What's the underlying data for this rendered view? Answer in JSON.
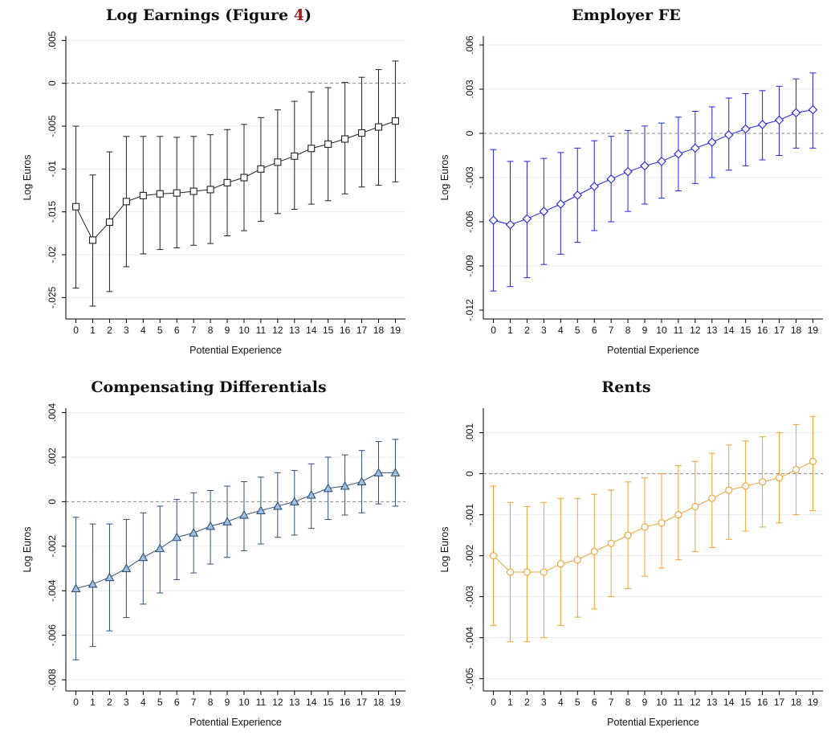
{
  "chart_data": [
    {
      "type": "line",
      "title": "Log Earnings (Figure 4)",
      "title_text": "Log Earnings (Figure ",
      "title_ref": "4",
      "title_tail": ")",
      "xlabel": "Potential Experience",
      "ylabel": "Log Euros",
      "color": "#222222",
      "marker": "square",
      "ylim": [
        -0.0275,
        0.0055
      ],
      "yticks": [
        0.005,
        0,
        -0.005,
        -0.01,
        -0.015,
        -0.02,
        -0.025
      ],
      "ytick_labels": [
        ".005",
        "0",
        "-.005",
        "-.01",
        "-.015",
        "-.02",
        "-.025"
      ],
      "x": [
        0,
        1,
        2,
        3,
        4,
        5,
        6,
        7,
        8,
        9,
        10,
        11,
        12,
        13,
        14,
        15,
        16,
        17,
        18,
        19
      ],
      "y": [
        -0.0144,
        -0.0183,
        -0.0162,
        -0.0138,
        -0.0131,
        -0.0129,
        -0.0128,
        -0.0126,
        -0.0124,
        -0.0116,
        -0.011,
        -0.01,
        -0.0092,
        -0.0085,
        -0.0076,
        -0.0071,
        -0.0065,
        -0.0058,
        -0.0051,
        -0.0044
      ],
      "ci_low": [
        -0.0239,
        -0.026,
        -0.0243,
        -0.0214,
        -0.0199,
        -0.0194,
        -0.0192,
        -0.0189,
        -0.0187,
        -0.0178,
        -0.0172,
        -0.0161,
        -0.0152,
        -0.0147,
        -0.0141,
        -0.0137,
        -0.0129,
        -0.0121,
        -0.0119,
        -0.0115
      ],
      "ci_high": [
        -0.005,
        -0.0107,
        -0.008,
        -0.0062,
        -0.0062,
        -0.0062,
        -0.0063,
        -0.0062,
        -0.006,
        -0.0054,
        -0.0048,
        -0.004,
        -0.0031,
        -0.0021,
        -0.001,
        -0.0005,
        0.0001,
        0.0007,
        0.0016,
        0.0026
      ]
    },
    {
      "type": "line",
      "title": "Employer FE",
      "xlabel": "Potential Experience",
      "ylabel": "Log Euros",
      "color": "#2222dd",
      "marker": "diamond",
      "ylim": [
        -0.0126,
        0.0066
      ],
      "yticks": [
        0.006,
        0.003,
        0,
        -0.003,
        -0.006,
        -0.009,
        -0.012
      ],
      "ytick_labels": [
        ".006",
        ".003",
        "0",
        "-.003",
        "-.006",
        "-.009",
        "-.012"
      ],
      "x": [
        0,
        1,
        2,
        3,
        4,
        5,
        6,
        7,
        8,
        9,
        10,
        11,
        12,
        13,
        14,
        15,
        16,
        17,
        18,
        19
      ],
      "y": [
        -0.0059,
        -0.0062,
        -0.0058,
        -0.0053,
        -0.0048,
        -0.0042,
        -0.0036,
        -0.0031,
        -0.0026,
        -0.0022,
        -0.0019,
        -0.0014,
        -0.001,
        -0.0006,
        -0.0001,
        0.0003,
        0.0006,
        0.0009,
        0.0014,
        0.0016
      ],
      "ci_low": [
        -0.0107,
        -0.0104,
        -0.0098,
        -0.0089,
        -0.0082,
        -0.0074,
        -0.0066,
        -0.006,
        -0.0053,
        -0.0048,
        -0.0044,
        -0.0039,
        -0.0034,
        -0.003,
        -0.0025,
        -0.0022,
        -0.0018,
        -0.0015,
        -0.001,
        -0.001
      ],
      "ci_high": [
        -0.0011,
        -0.0019,
        -0.0019,
        -0.0017,
        -0.0013,
        -0.001,
        -0.0005,
        -0.0002,
        0.0002,
        0.0005,
        0.0007,
        0.0011,
        0.0015,
        0.0018,
        0.0024,
        0.0027,
        0.0029,
        0.0032,
        0.0037,
        0.0041
      ]
    },
    {
      "type": "line",
      "title": "Compensating Differentials",
      "xlabel": "Potential Experience",
      "ylabel": "Log Euros",
      "color": "#2e5077",
      "fill": "#9fc0e0",
      "marker": "triangle",
      "ylim": [
        -0.0085,
        0.0042
      ],
      "yticks": [
        0.004,
        0.002,
        0,
        -0.002,
        -0.004,
        -0.006,
        -0.008
      ],
      "ytick_labels": [
        ".004",
        ".002",
        "0",
        "-.002",
        "-.004",
        "-.006",
        "-.008"
      ],
      "x": [
        0,
        1,
        2,
        3,
        4,
        5,
        6,
        7,
        8,
        9,
        10,
        11,
        12,
        13,
        14,
        15,
        16,
        17,
        18,
        19
      ],
      "y": [
        -0.0039,
        -0.0037,
        -0.0034,
        -0.003,
        -0.0025,
        -0.0021,
        -0.0016,
        -0.0014,
        -0.0011,
        -0.0009,
        -0.0006,
        -0.0004,
        -0.0002,
        0.0,
        0.0003,
        0.0006,
        0.0007,
        0.0009,
        0.0013,
        0.0013
      ],
      "ci_low": [
        -0.0071,
        -0.0065,
        -0.0058,
        -0.0052,
        -0.0046,
        -0.0041,
        -0.0035,
        -0.0032,
        -0.0028,
        -0.0025,
        -0.0022,
        -0.0019,
        -0.0016,
        -0.0015,
        -0.0012,
        -0.0008,
        -0.0006,
        -0.0005,
        -0.0001,
        -0.0002
      ],
      "ci_high": [
        -0.0007,
        -0.001,
        -0.001,
        -0.0008,
        -0.0005,
        -0.0002,
        0.0001,
        0.0004,
        0.0005,
        0.0007,
        0.0009,
        0.0011,
        0.0013,
        0.0014,
        0.0017,
        0.002,
        0.0021,
        0.0023,
        0.0027,
        0.0028
      ]
    },
    {
      "type": "line",
      "title": "Rents",
      "xlabel": "Potential Experience",
      "ylabel": "Log Euros",
      "color": "#f0a030",
      "marker": "circle",
      "ylim": [
        -0.0053,
        0.0016
      ],
      "yticks": [
        0.001,
        0,
        -0.001,
        -0.002,
        -0.003,
        -0.004,
        -0.005
      ],
      "ytick_labels": [
        ".001",
        "0",
        "-.001",
        "-.002",
        "-.003",
        "-.004",
        "-.005"
      ],
      "x": [
        0,
        1,
        2,
        3,
        4,
        5,
        6,
        7,
        8,
        9,
        10,
        11,
        12,
        13,
        14,
        15,
        16,
        17,
        18,
        19
      ],
      "y": [
        -0.002,
        -0.0024,
        -0.0024,
        -0.0024,
        -0.0022,
        -0.0021,
        -0.0019,
        -0.0017,
        -0.0015,
        -0.0013,
        -0.0012,
        -0.001,
        -0.0008,
        -0.0006,
        -0.0004,
        -0.0003,
        -0.0002,
        -0.0001,
        0.0001,
        0.0003
      ],
      "ci_low": [
        -0.0037,
        -0.0041,
        -0.0041,
        -0.004,
        -0.0037,
        -0.0035,
        -0.0033,
        -0.003,
        -0.0028,
        -0.0025,
        -0.0023,
        -0.0021,
        -0.0019,
        -0.0018,
        -0.0016,
        -0.0014,
        -0.0013,
        -0.0012,
        -0.001,
        -0.0009
      ],
      "ci_high": [
        -0.0003,
        -0.0007,
        -0.0008,
        -0.0007,
        -0.0006,
        -0.0006,
        -0.0005,
        -0.0004,
        -0.0002,
        -0.0001,
        0.0,
        0.0002,
        0.0003,
        0.0005,
        0.0007,
        0.0008,
        0.0009,
        0.001,
        0.0012,
        0.0014
      ]
    }
  ]
}
